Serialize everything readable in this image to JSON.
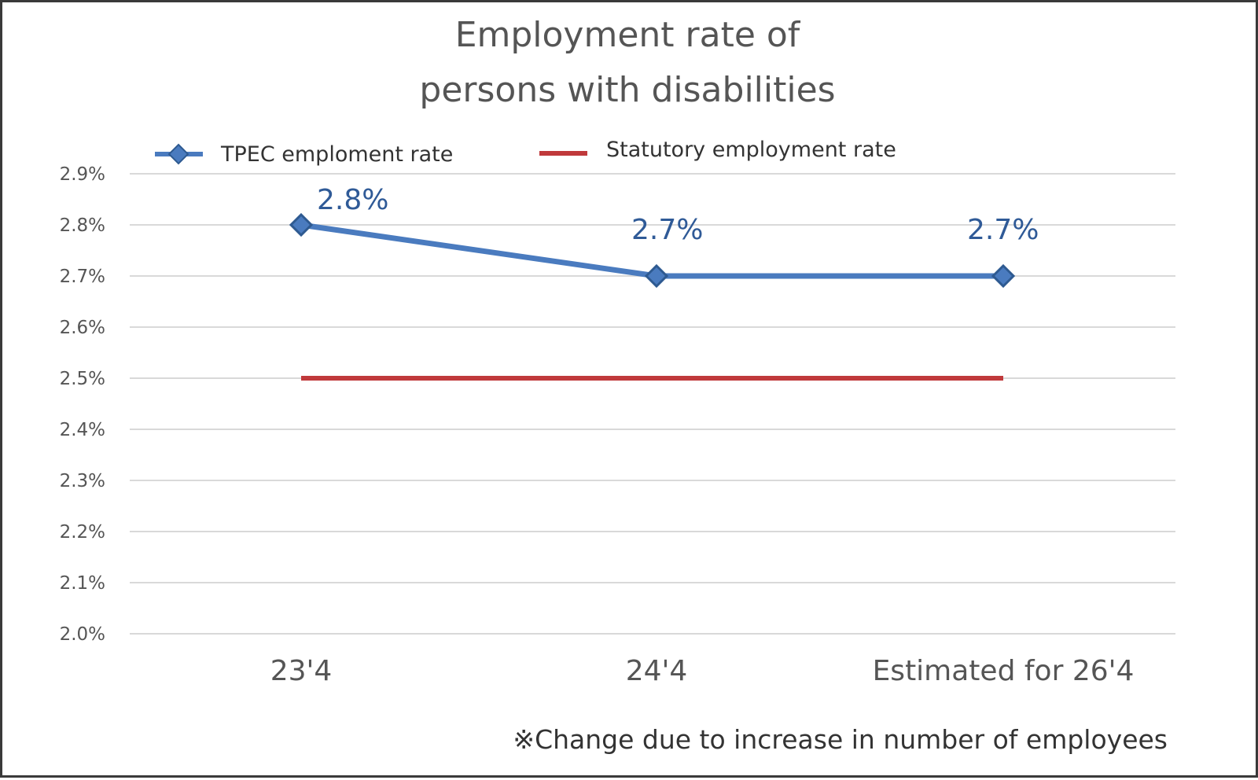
{
  "chart_data": {
    "type": "line",
    "title_lines": [
      "Employment rate of",
      "persons with disabilities"
    ],
    "categories": [
      "23'4",
      "24'4",
      "Estimated for 26'4"
    ],
    "series": [
      {
        "name": "TPEC emploment rate",
        "values": [
          2.8,
          2.7,
          2.7
        ],
        "data_labels": [
          "2.8%",
          "2.7%",
          "2.7%"
        ],
        "color": "#4a7bbf",
        "marker": "diamond"
      },
      {
        "name": "Statutory employment rate",
        "values": [
          2.5,
          2.5,
          2.5
        ],
        "color": "#c0393b",
        "marker": "none"
      }
    ],
    "y_ticks": [
      "2.0%",
      "2.1%",
      "2.2%",
      "2.3%",
      "2.4%",
      "2.5%",
      "2.6%",
      "2.7%",
      "2.8%",
      "2.9%"
    ],
    "ylim": [
      2.0,
      2.9
    ],
    "grid": true,
    "legend_position": "top",
    "note": "※Change due to increase in number of employees"
  }
}
